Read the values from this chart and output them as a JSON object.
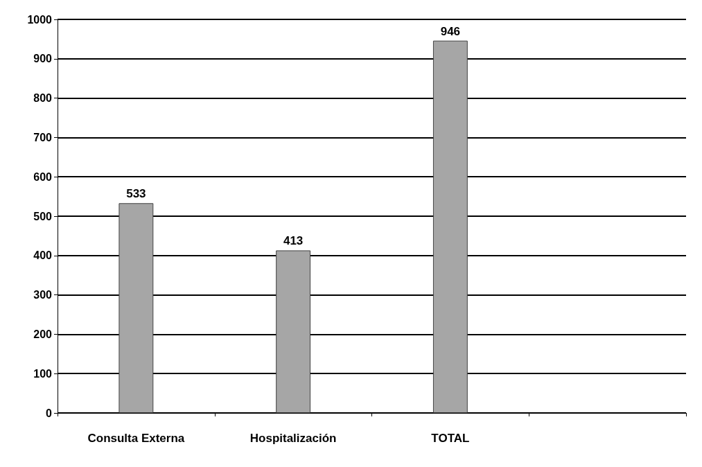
{
  "chart_data": {
    "type": "bar",
    "categories": [
      "Consulta Externa",
      "Hospitalización",
      "TOTAL",
      null
    ],
    "values": [
      533,
      413,
      946,
      null
    ],
    "color": "#a6a6a6",
    "ylim": [
      0,
      1000
    ],
    "yticks": [
      0,
      100,
      200,
      300,
      400,
      500,
      600,
      700,
      800,
      900,
      1000
    ],
    "grid": "y",
    "data_labels": true
  }
}
